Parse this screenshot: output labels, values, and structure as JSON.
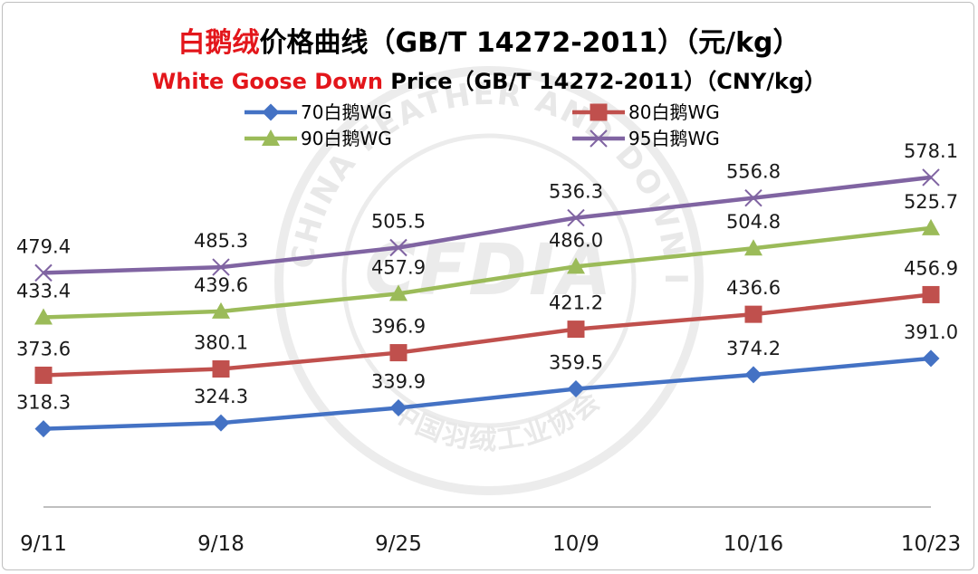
{
  "chart_data": {
    "type": "line",
    "title_red": "白鹅绒",
    "title_rest": "价格曲线（GB/T 14272-2011）（元/kg）",
    "subtitle_red": "White Goose Down",
    "subtitle_rest": " Price（GB/T 14272-2011）（CNY/kg）",
    "categories": [
      "9/11",
      "9/18",
      "9/25",
      "10/9",
      "10/16",
      "10/23"
    ],
    "ylim": [
      200,
      600
    ],
    "grid": false,
    "legend_position": "top",
    "series": [
      {
        "name": "70白鹅WG",
        "color": "#4472c4",
        "marker": "diamond",
        "values": [
          318.3,
          324.3,
          339.9,
          359.5,
          374.2,
          391.0
        ],
        "labels": [
          "318.3",
          "324.3",
          "339.9",
          "359.5",
          "374.2",
          "391.0"
        ]
      },
      {
        "name": "80白鹅WG",
        "color": "#c0504d",
        "marker": "square",
        "values": [
          373.6,
          380.1,
          396.9,
          421.2,
          436.6,
          456.9
        ],
        "labels": [
          "373.6",
          "380.1",
          "396.9",
          "421.2",
          "436.6",
          "456.9"
        ]
      },
      {
        "name": "90白鹅WG",
        "color": "#9bbb59",
        "marker": "triangle",
        "values": [
          433.4,
          439.6,
          457.9,
          486.0,
          504.8,
          525.7
        ],
        "labels": [
          "433.4",
          "439.6",
          "457.9",
          "486.0",
          "504.8",
          "525.7"
        ]
      },
      {
        "name": "95白鹅WG",
        "color": "#8064a2",
        "marker": "x",
        "values": [
          479.4,
          485.3,
          505.5,
          536.3,
          556.8,
          578.1
        ],
        "labels": [
          "479.4",
          "485.3",
          "505.5",
          "536.3",
          "556.8",
          "578.1"
        ]
      }
    ]
  },
  "watermark": {
    "logo_text": "CFDIA",
    "ring_text_en": "CHINA FEATHER AND DOWN INDUSTRIAL ASSOCIATION",
    "ring_text_cn": "中国羽绒工业协会"
  }
}
